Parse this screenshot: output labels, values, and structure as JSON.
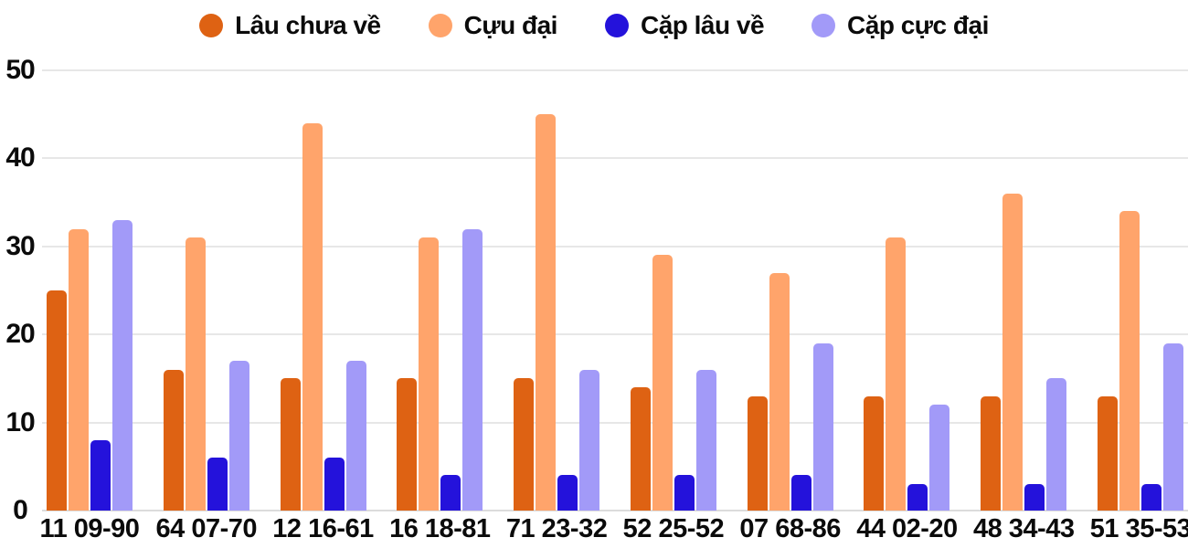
{
  "chart_data": {
    "type": "bar",
    "title": "",
    "xlabel": "",
    "ylabel": "",
    "categories": [
      "11 09-90",
      "64 07-70",
      "12 16-61",
      "16 18-81",
      "71 23-32",
      "52 25-52",
      "07 68-86",
      "44 02-20",
      "48 34-43",
      "51 35-53"
    ],
    "series": [
      {
        "name": "Lâu chưa về",
        "color": "#DE6213",
        "values": [
          25,
          16,
          15,
          15,
          15,
          14,
          13,
          13,
          13,
          13
        ]
      },
      {
        "name": "Cựu đại",
        "color": "#FFA46B",
        "values": [
          32,
          31,
          44,
          31,
          45,
          29,
          27,
          31,
          36,
          34
        ]
      },
      {
        "name": "Cặp lâu về",
        "color": "#2412DB",
        "values": [
          8,
          6,
          6,
          4,
          4,
          4,
          4,
          3,
          3,
          3
        ]
      },
      {
        "name": "Cặp cực đại",
        "color": "#A29AF8",
        "values": [
          33,
          17,
          17,
          32,
          16,
          16,
          19,
          12,
          15,
          19
        ]
      }
    ],
    "y_ticks": [
      0,
      10,
      20,
      30,
      40,
      50
    ],
    "ylim": [
      0,
      50
    ],
    "grid": true,
    "legend_position": "top"
  },
  "colors": {
    "background": "#ffffff",
    "grid_line": "#e7e7e7",
    "axis_line": "#dcdcdc",
    "text": "#0b0b0b"
  }
}
